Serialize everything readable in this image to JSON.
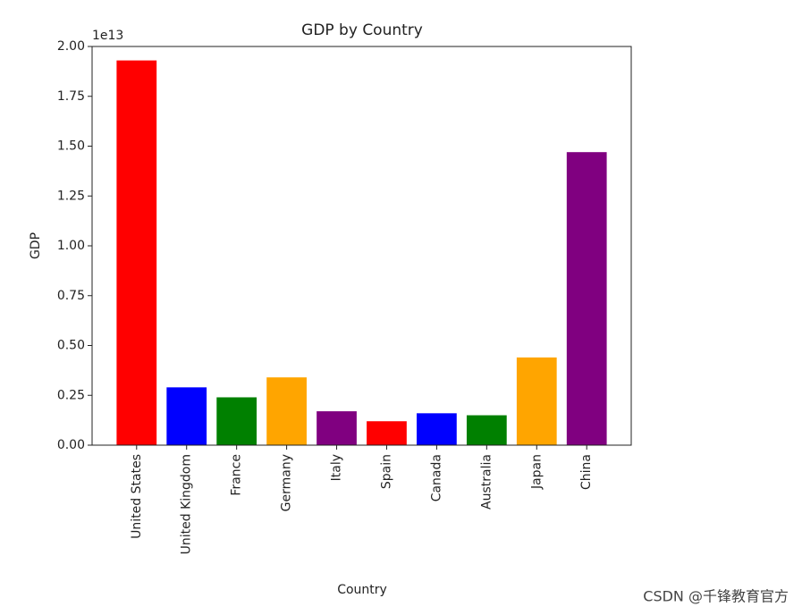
{
  "chart_data": {
    "type": "bar",
    "title": "GDP by Country",
    "x_label": "Country",
    "y_label": "GDP",
    "y_offset_label": "1e13",
    "categories": [
      "United States",
      "United Kingdom",
      "France",
      "Germany",
      "Italy",
      "Spain",
      "Canada",
      "Australia",
      "Japan",
      "China"
    ],
    "values": [
      1.93,
      0.29,
      0.24,
      0.34,
      0.17,
      0.12,
      0.16,
      0.15,
      0.44,
      1.47
    ],
    "colors": [
      "#ff0000",
      "#0000ff",
      "#008000",
      "#ffa500",
      "#800080",
      "#ff0000",
      "#0000ff",
      "#008000",
      "#ffa500",
      "#800080"
    ],
    "ylim": [
      0,
      2
    ],
    "yticks": [
      {
        "value": 0,
        "label": "0.00"
      },
      {
        "value": 0.25,
        "label": "0.25"
      },
      {
        "value": 0.5,
        "label": "0.50"
      },
      {
        "value": 0.75,
        "label": "0.75"
      },
      {
        "value": 1,
        "label": "1.00"
      },
      {
        "value": 1.25,
        "label": "1.25"
      },
      {
        "value": 1.5,
        "label": "1.50"
      },
      {
        "value": 1.75,
        "label": "1.75"
      },
      {
        "value": 2,
        "label": "2.00"
      }
    ],
    "grid": false
  },
  "watermark": "CSDN @千锋教育官方"
}
